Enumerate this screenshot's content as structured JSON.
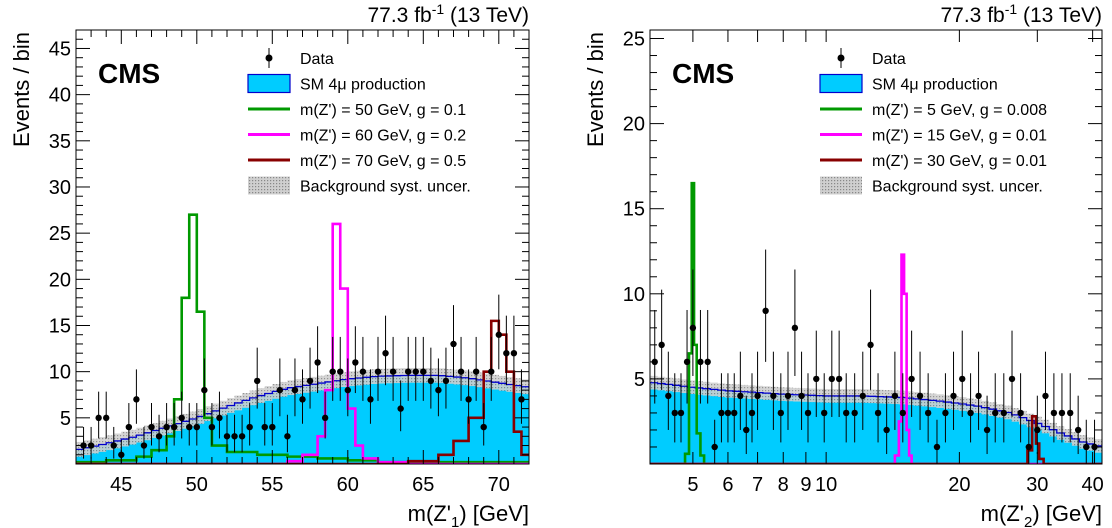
{
  "colors": {
    "sm_fill": "#00ccff",
    "sm_line": "#0000cc",
    "signal_1": "#009900",
    "signal_2": "#ff00ff",
    "signal_3": "#880000",
    "data": "#000000",
    "uncertainty": "#999999"
  },
  "chart_data": [
    {
      "type": "histogram",
      "title": "",
      "lumi_label": "77.3 fb",
      "lumi_sup": "-1",
      "energy_label": " (13 TeV)",
      "cms_label": "CMS",
      "xlabel": "m(Z'",
      "xlabel_sub": "1",
      "xlabel_end": ") [GeV]",
      "ylabel": "Events / bin",
      "xscale": "linear",
      "xlim": [
        42,
        72
      ],
      "ylim": [
        0,
        47
      ],
      "xticks": [
        45,
        50,
        55,
        60,
        65,
        70
      ],
      "yticks": [
        5,
        10,
        15,
        20,
        25,
        30,
        35,
        40,
        45
      ],
      "legend_position": "top-right",
      "legend": [
        "Data",
        "SM 4μ production",
        "m(Z') = 50 GeV, g = 0.1",
        "m(Z') = 60 GeV, g = 0.2",
        "m(Z') = 70 GeV, g = 0.5",
        "Background syst. uncer."
      ],
      "background": {
        "name": "SM 4μ production",
        "x": [
          42,
          44,
          46,
          48,
          50,
          52,
          54,
          56,
          58,
          60,
          62,
          64,
          66,
          68,
          70,
          72
        ],
        "y": [
          1.5,
          2.2,
          3.0,
          4.0,
          5.0,
          6.2,
          7.3,
          8.2,
          8.7,
          9.2,
          9.5,
          9.6,
          9.6,
          9.3,
          8.8,
          8.3
        ],
        "syst_uncertainty": 0.8
      },
      "signals": [
        {
          "name": "m(Z') = 50 GeV, g = 0.1",
          "color_key": "signal_1",
          "edges": [
            42,
            44,
            46,
            47,
            48,
            48.5,
            49,
            49.5,
            50,
            50.5,
            51,
            52,
            54,
            56,
            58,
            60,
            62,
            72
          ],
          "values": [
            0.2,
            0.4,
            0.8,
            1.5,
            3.0,
            7.0,
            18.0,
            27.0,
            16.5,
            5.0,
            2.0,
            1.3,
            1.0,
            0.8,
            0.6,
            0.4,
            0.2
          ]
        },
        {
          "name": "m(Z') = 60 GeV, g = 0.2",
          "color_key": "signal_2",
          "edges": [
            42,
            56,
            57,
            58,
            58.5,
            59,
            59.5,
            60,
            60.5,
            61,
            62,
            64,
            72
          ],
          "values": [
            0,
            0.3,
            1.0,
            3.0,
            8.0,
            26.0,
            19.0,
            6.0,
            2.0,
            0.6,
            0.2,
            0
          ]
        },
        {
          "name": "m(Z') = 70 GeV, g = 0.5",
          "color_key": "signal_3",
          "edges": [
            42,
            64,
            66,
            67,
            68,
            69,
            69.5,
            70,
            70.5,
            71,
            71.5,
            72
          ],
          "values": [
            0,
            0.3,
            1.0,
            2.5,
            5.0,
            10.0,
            15.5,
            14.0,
            10.0,
            3.5,
            1.0
          ]
        }
      ],
      "data_points": {
        "name": "Data",
        "x": [
          42.5,
          43.0,
          43.5,
          44.0,
          44.5,
          45.0,
          45.5,
          46.0,
          46.5,
          47.0,
          47.5,
          48.0,
          48.5,
          49.0,
          49.5,
          50.0,
          50.5,
          51.0,
          51.5,
          52.0,
          52.5,
          53.0,
          53.5,
          54.0,
          54.5,
          55.0,
          55.5,
          56.0,
          56.5,
          57.0,
          57.5,
          58.0,
          58.5,
          59.0,
          59.5,
          60.0,
          60.5,
          61.0,
          61.5,
          62.0,
          62.5,
          63.0,
          63.5,
          64.0,
          64.5,
          65.0,
          65.5,
          66.0,
          66.5,
          67.0,
          67.5,
          68.0,
          68.5,
          69.0,
          69.5,
          70.0,
          70.5,
          71.0,
          71.5
        ],
        "y": [
          2,
          2,
          5,
          5,
          2,
          1,
          4,
          7,
          2,
          4,
          3,
          4,
          4,
          5,
          4,
          4,
          8,
          4,
          5,
          3,
          3,
          3,
          4,
          9,
          4,
          4,
          8,
          3,
          8,
          7,
          9,
          11,
          5,
          10,
          10,
          8,
          11,
          10,
          7,
          10,
          12,
          10,
          6,
          10,
          10,
          10,
          9,
          8,
          9,
          13,
          10,
          7,
          10,
          4,
          10,
          14,
          12,
          12,
          7
        ]
      }
    },
    {
      "type": "histogram",
      "title": "",
      "lumi_label": "77.3 fb",
      "lumi_sup": "-1",
      "energy_label": " (13 TeV)",
      "cms_label": "CMS",
      "xlabel": "m(Z'",
      "xlabel_sub": "2",
      "xlabel_end": ") [GeV]",
      "ylabel": "Events / bin",
      "xscale": "log",
      "xlim": [
        4.0,
        42
      ],
      "ylim": [
        0,
        25.5
      ],
      "xticks": [
        5,
        6,
        7,
        8,
        9,
        10,
        20,
        30,
        40
      ],
      "yticks": [
        5,
        10,
        15,
        20,
        25
      ],
      "legend_position": "top-right",
      "legend": [
        "Data",
        "SM 4μ production",
        "m(Z') = 5 GeV, g = 0.008",
        "m(Z') = 15 GeV, g = 0.01",
        "m(Z') = 30 GeV, g = 0.01",
        "Background syst. uncer."
      ],
      "background": {
        "name": "SM 4μ production",
        "x": [
          4.0,
          5,
          6,
          7,
          8,
          10,
          12,
          15,
          18,
          22,
          26,
          30,
          34,
          38,
          42
        ],
        "y": [
          4.8,
          4.5,
          4.3,
          4.2,
          4.1,
          4.0,
          4.0,
          3.9,
          3.7,
          3.4,
          3.0,
          2.4,
          1.8,
          1.3,
          1.0
        ],
        "syst_uncertainty": 0.4
      },
      "signals": [
        {
          "name": "m(Z') = 5 GeV, g = 0.008",
          "color_key": "signal_1",
          "edges": [
            4.0,
            4.8,
            4.9,
            4.97,
            5.03,
            5.1,
            5.2,
            5.3,
            42
          ],
          "values": [
            0,
            0.6,
            6.5,
            16.5,
            7.0,
            1.8,
            0.5,
            0
          ]
        },
        {
          "name": "m(Z') = 15 GeV, g = 0.01",
          "color_key": "signal_2",
          "edges": [
            4.0,
            14.3,
            14.6,
            14.8,
            15.0,
            15.2,
            15.4,
            15.6,
            42
          ],
          "values": [
            0,
            0.5,
            2.5,
            12.3,
            10.0,
            2.0,
            0.5,
            0
          ]
        },
        {
          "name": "m(Z') = 30 GeV, g = 0.01",
          "color_key": "signal_3",
          "edges": [
            4.0,
            28.5,
            29.2,
            29.8,
            30.3,
            31.0,
            42
          ],
          "values": [
            0,
            0.8,
            2.8,
            1.2,
            0.3,
            0
          ]
        }
      ],
      "data_points": {
        "name": "Data",
        "x": [
          4.1,
          4.25,
          4.4,
          4.55,
          4.7,
          4.85,
          5.0,
          5.2,
          5.4,
          5.6,
          5.8,
          6.0,
          6.2,
          6.4,
          6.6,
          6.8,
          7.0,
          7.3,
          7.6,
          7.9,
          8.2,
          8.5,
          8.8,
          9.1,
          9.5,
          9.9,
          10.3,
          10.7,
          11.1,
          11.6,
          12.1,
          12.6,
          13.1,
          13.7,
          14.3,
          14.9,
          15.6,
          16.3,
          17.0,
          17.8,
          18.6,
          19.4,
          20.3,
          21.2,
          22.1,
          23.1,
          24.1,
          25.2,
          26.3,
          27.5,
          28.7,
          30.0,
          31.3,
          32.7,
          34.1,
          35.6,
          37.1,
          38.7,
          40.4
        ],
        "y": [
          6,
          7,
          4,
          3,
          3,
          6,
          8,
          6,
          6,
          1,
          3,
          3,
          3,
          4,
          2,
          3,
          4,
          9,
          4,
          3,
          4,
          8,
          4,
          3,
          5,
          3,
          5,
          5,
          3,
          3,
          4,
          7,
          3,
          2,
          4,
          3,
          5,
          4,
          3,
          1,
          3,
          4,
          5,
          3,
          4,
          2,
          3,
          3,
          5,
          3,
          1,
          2,
          4,
          3,
          3,
          3,
          2,
          1,
          1
        ]
      }
    }
  ]
}
